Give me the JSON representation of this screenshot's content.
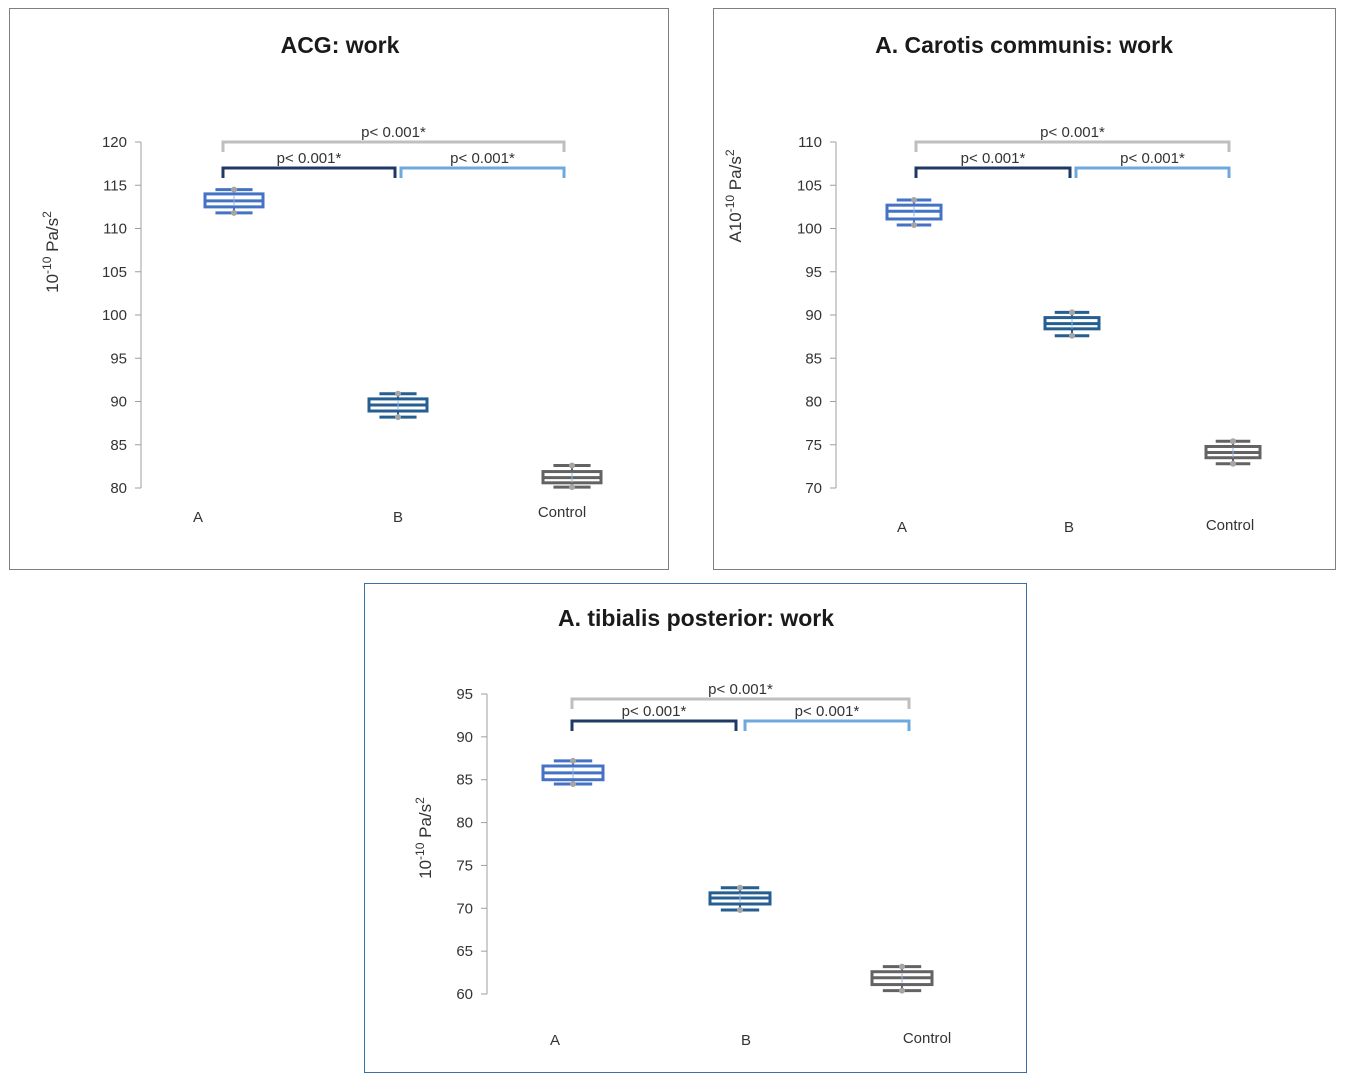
{
  "colors": {
    "group_A": "#4472c4",
    "group_B": "#255e91",
    "group_Control": "#636363",
    "bracket_A_B": "#1f3864",
    "bracket_B_Control": "#6fa8dc",
    "bracket_A_Control": "#bfbfbf",
    "whisker_dot": "#a5a5a5",
    "axis": "#9f9f9f"
  },
  "chart_data": [
    {
      "type": "box",
      "title": "ACG: work",
      "ylabel_main": "10",
      "ylabel_exp": "-10",
      "ylabel_unit": " Pa/s",
      "ylabel_sq": "2",
      "ylim": [
        80,
        120
      ],
      "yticks": [
        "80",
        "85",
        "90",
        "95",
        "100",
        "105",
        "110",
        "115",
        "120"
      ],
      "categories": [
        "A",
        "B",
        "Control"
      ],
      "boxes": [
        {
          "name": "A",
          "min": 111.8,
          "q1": 112.5,
          "median": 113.2,
          "q3": 114.0,
          "max": 114.5
        },
        {
          "name": "B",
          "min": 88.2,
          "q1": 88.9,
          "median": 89.6,
          "q3": 90.3,
          "max": 90.9
        },
        {
          "name": "Control",
          "min": 80.1,
          "q1": 80.6,
          "median": 81.2,
          "q3": 81.9,
          "max": 82.6
        }
      ],
      "comparisons": [
        {
          "groups": "A-B",
          "label": "p< 0.001*"
        },
        {
          "groups": "B-Control",
          "label": "p< 0.001*"
        },
        {
          "groups": "A-Control",
          "label": "p< 0.001*"
        }
      ]
    },
    {
      "type": "box",
      "title": "A. Carotis communis: work",
      "ylabel_main": "A10",
      "ylabel_exp": "-10",
      "ylabel_unit": " Pa/s",
      "ylabel_sq": "2",
      "ylim": [
        70,
        110
      ],
      "yticks": [
        "70",
        "75",
        "80",
        "85",
        "90",
        "95",
        "100",
        "105",
        "110"
      ],
      "categories": [
        "A",
        "B",
        "Control"
      ],
      "boxes": [
        {
          "name": "A",
          "min": 100.4,
          "q1": 101.1,
          "median": 102.0,
          "q3": 102.7,
          "max": 103.3
        },
        {
          "name": "B",
          "min": 87.6,
          "q1": 88.4,
          "median": 89.0,
          "q3": 89.7,
          "max": 90.3
        },
        {
          "name": "Control",
          "min": 72.8,
          "q1": 73.5,
          "median": 74.1,
          "q3": 74.8,
          "max": 75.4
        }
      ],
      "comparisons": [
        {
          "groups": "A-B",
          "label": "p< 0.001*"
        },
        {
          "groups": "B-Control",
          "label": "p< 0.001*"
        },
        {
          "groups": "A-Control",
          "label": "p< 0.001*"
        }
      ]
    },
    {
      "type": "box",
      "title": "A. tibialis posterior: work",
      "ylabel_main": "10",
      "ylabel_exp": "-10",
      "ylabel_unit": " Pa/s",
      "ylabel_sq": "2",
      "ylim": [
        60,
        95
      ],
      "yticks": [
        "60",
        "65",
        "70",
        "75",
        "80",
        "85",
        "90",
        "95"
      ],
      "categories": [
        "A",
        "B",
        "Control"
      ],
      "boxes": [
        {
          "name": "A",
          "min": 84.5,
          "q1": 85.0,
          "median": 85.8,
          "q3": 86.6,
          "max": 87.2
        },
        {
          "name": "B",
          "min": 69.8,
          "q1": 70.5,
          "median": 71.2,
          "q3": 71.8,
          "max": 72.4
        },
        {
          "name": "Control",
          "min": 60.4,
          "q1": 61.1,
          "median": 61.9,
          "q3": 62.6,
          "max": 63.2
        }
      ],
      "comparisons": [
        {
          "groups": "A-B",
          "label": "p< 0.001*"
        },
        {
          "groups": "B-Control",
          "label": "p< 0.001*"
        },
        {
          "groups": "A-Control",
          "label": "p< 0.001*"
        }
      ]
    }
  ]
}
